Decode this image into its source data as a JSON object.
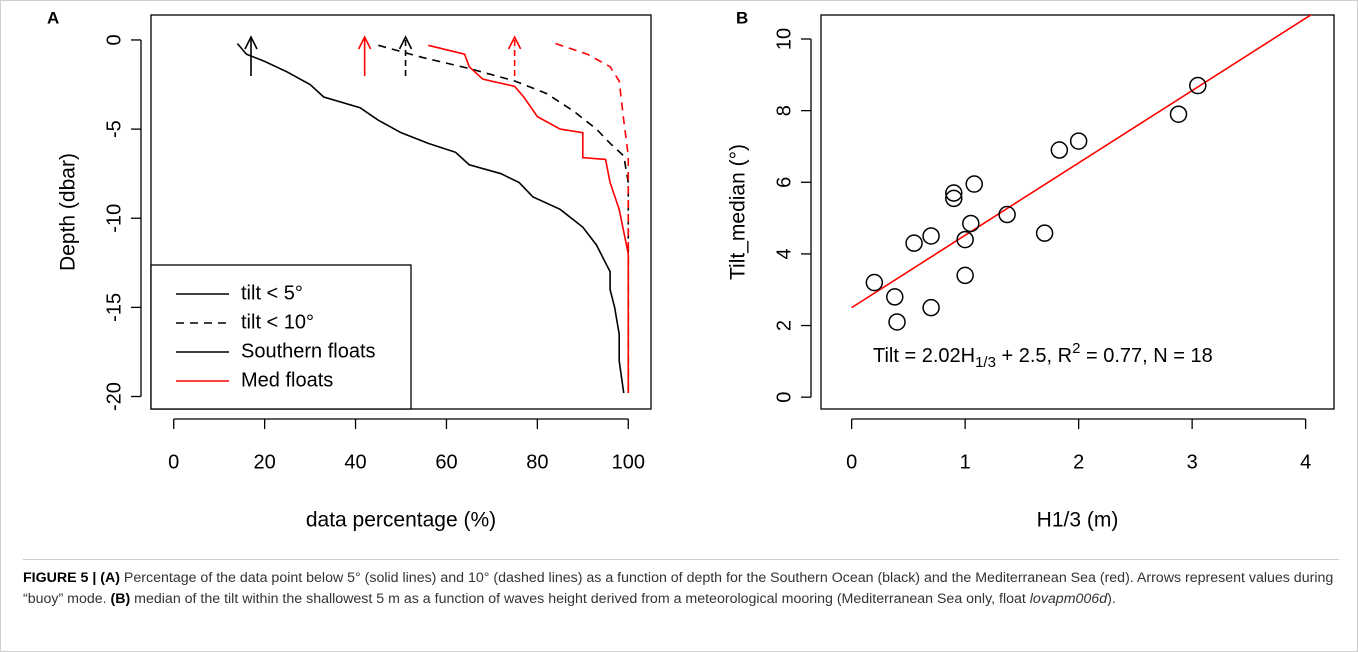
{
  "chart_data": [
    {
      "type": "line",
      "panel": "A",
      "xlabel": "data percentage (%)",
      "ylabel": "Depth (dbar)",
      "xlim": [
        -5,
        105
      ],
      "ylim": [
        -20.7,
        1.4
      ],
      "xticks": [
        0,
        20,
        40,
        60,
        80,
        100
      ],
      "yticks": [
        -20,
        -15,
        -10,
        -5,
        0
      ],
      "series": [
        {
          "color": "#000000",
          "dashed": false,
          "buoy": 17,
          "x": [
            14,
            16,
            20,
            25,
            30,
            33,
            41,
            45,
            50,
            56,
            62,
            65,
            72,
            76,
            79,
            85,
            90,
            93,
            95,
            96,
            96,
            97,
            98,
            98,
            99
          ],
          "values": [
            -0.2,
            -0.8,
            -1.2,
            -1.8,
            -2.5,
            -3.2,
            -3.8,
            -4.5,
            -5.2,
            -5.8,
            -6.3,
            -7,
            -7.5,
            -8,
            -8.8,
            -9.5,
            -10.5,
            -11.5,
            -12.5,
            -13,
            -14,
            -15,
            -16.5,
            -18,
            -19.8
          ]
        },
        {
          "color": "#000000",
          "dashed": true,
          "buoy": 51,
          "x": [
            45,
            55,
            65,
            75,
            82,
            88,
            93,
            96,
            99,
            100,
            100
          ],
          "values": [
            -0.3,
            -1,
            -1.6,
            -2.3,
            -3,
            -4,
            -5,
            -5.8,
            -6.5,
            -8,
            -19.8
          ]
        },
        {
          "color": "#ff0000",
          "dashed": false,
          "buoy": 42,
          "x": [
            56,
            64,
            65,
            68,
            75,
            77,
            80,
            85,
            90,
            90,
            95,
            96,
            98,
            100,
            100
          ],
          "values": [
            -0.3,
            -0.8,
            -1.5,
            -2.2,
            -2.6,
            -3.2,
            -4.3,
            -5,
            -5.2,
            -6.6,
            -6.7,
            -8,
            -9.5,
            -12,
            -19.8
          ]
        },
        {
          "color": "#ff0000",
          "dashed": true,
          "buoy": 75,
          "x": [
            84,
            91,
            96,
            98,
            99,
            100,
            100
          ],
          "values": [
            -0.2,
            -0.8,
            -1.5,
            -2.3,
            -4.5,
            -6.5,
            -19.8
          ]
        }
      ],
      "legend_corner": "bottom-left",
      "legend": [
        {
          "label": "tilt < 5°",
          "color": "#000000",
          "dashed": false
        },
        {
          "label": "tilt < 10°",
          "color": "#000000",
          "dashed": true
        },
        {
          "label": "Southern floats",
          "color": "#000000",
          "dashed": false
        },
        {
          "label": "Med floats",
          "color": "#ff0000",
          "dashed": false
        }
      ]
    },
    {
      "type": "scatter",
      "panel": "B",
      "xlabel": "H1/3 (m)",
      "ylabel": "Tilt_median (°)",
      "xlim": [
        -0.27,
        4.25
      ],
      "ylim": [
        -0.33,
        10.67
      ],
      "xticks": [
        0,
        1,
        2,
        3,
        4
      ],
      "yticks": [
        0,
        2,
        4,
        6,
        8,
        10
      ],
      "color": "#000000",
      "x": [
        0.2,
        0.38,
        0.4,
        0.55,
        0.7,
        0.7,
        0.9,
        0.9,
        1.0,
        1.0,
        1.05,
        1.08,
        1.37,
        1.7,
        1.83,
        2.0,
        2.88,
        3.05
      ],
      "values": [
        3.2,
        2.8,
        2.1,
        4.3,
        4.5,
        2.5,
        5.7,
        5.55,
        4.4,
        3.4,
        4.85,
        5.95,
        5.1,
        4.58,
        6.9,
        7.15,
        7.9,
        8.7
      ],
      "fit": {
        "slope": 2.02,
        "intercept": 2.5,
        "color": "#ff0000"
      },
      "annotation": {
        "lhs": "Tilt = 2.02H",
        "sub": "1/3",
        "mid": " + 2.5, R",
        "sup": "2",
        "rhs": " = 0.77, N = 18"
      }
    }
  ],
  "caption": {
    "head": "FIGURE 5 | (A)",
    "a": " Percentage of the data point below 5° (solid lines) and 10° (dashed lines) as a function of depth for the Southern Ocean (black) and the Mediterranean Sea (red). Arrows represent values during “buoy” mode. ",
    "b_label": "(B)",
    "b": " median of the tilt within the shallowest 5 m as a function of waves height derived from a meteorological mooring (Mediterranean Sea only, float ",
    "float": "lovapm006d",
    "end": ")."
  }
}
